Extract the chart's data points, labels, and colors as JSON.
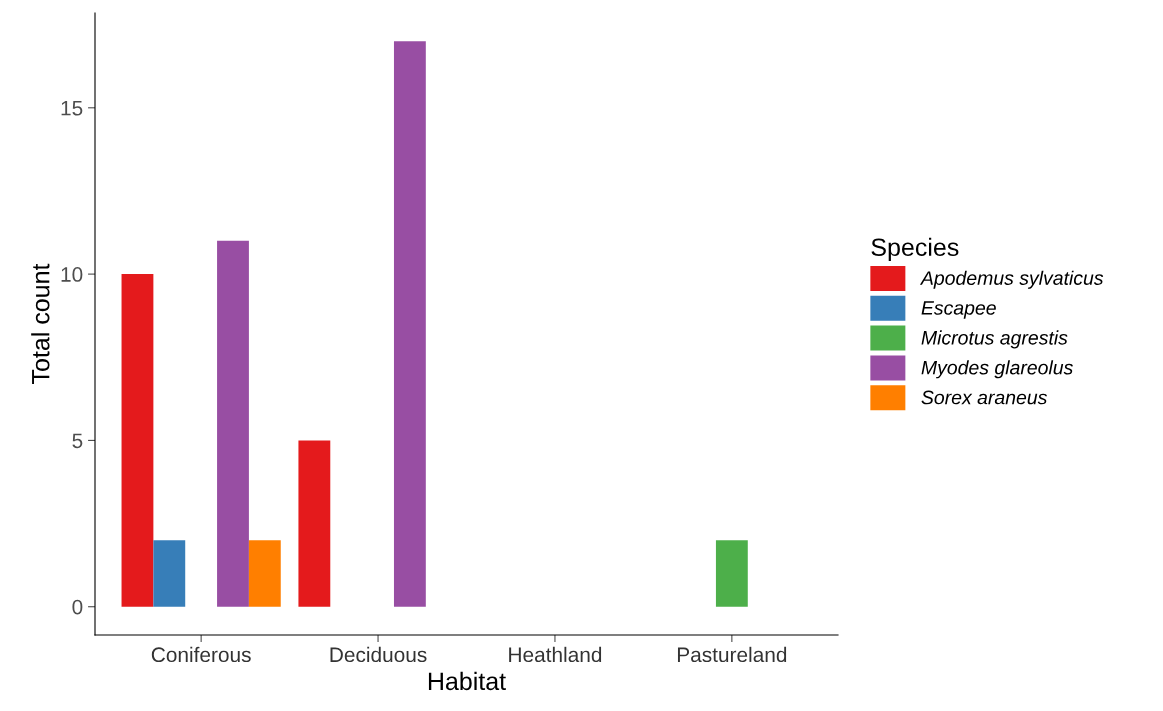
{
  "chart_data": {
    "type": "bar",
    "xlabel": "Habitat",
    "ylabel": "Total count",
    "legend_title": "Species",
    "legend": "right",
    "categories": [
      "Coniferous",
      "Deciduous",
      "Heathland",
      "Pastureland"
    ],
    "series": [
      {
        "name": "Apodemus sylvaticus",
        "color": "#e41a1c",
        "values": [
          10,
          5,
          null,
          null
        ]
      },
      {
        "name": "Escapee",
        "color": "#377eb8",
        "values": [
          2,
          null,
          null,
          null
        ]
      },
      {
        "name": "Microtus agrestis",
        "color": "#4daf4a",
        "values": [
          null,
          null,
          null,
          2
        ]
      },
      {
        "name": "Myodes glareolus",
        "color": "#984ea3",
        "values": [
          11,
          17,
          null,
          null
        ]
      },
      {
        "name": "Sorex araneus",
        "color": "#ff7f00",
        "values": [
          2,
          null,
          null,
          null
        ]
      }
    ],
    "ylim": [
      -0.85,
      17.85
    ],
    "yticks": [
      0,
      5,
      10,
      15
    ],
    "grid": false
  }
}
